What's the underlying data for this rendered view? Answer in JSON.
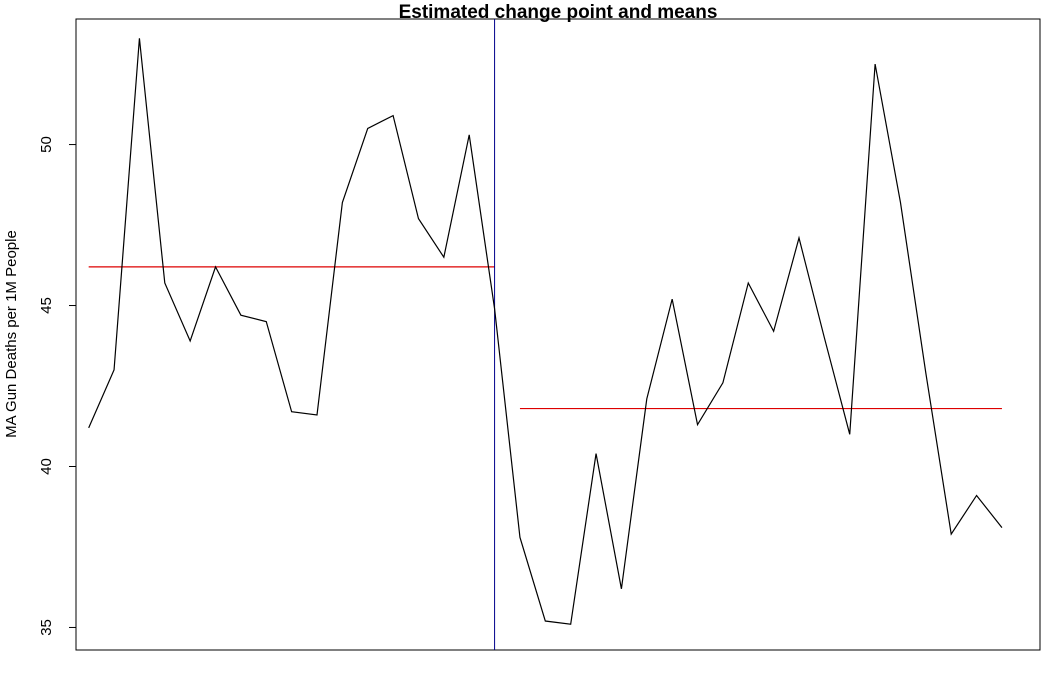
{
  "chart_data": {
    "type": "line",
    "title": "Estimated change point and means",
    "xlabel": "",
    "ylabel": "MA Gun Deaths per 1M People",
    "ylim": [
      34.3,
      53.9
    ],
    "yticks": [
      35,
      40,
      45,
      50
    ],
    "x_range": [
      -0.5,
      37.5
    ],
    "grid": false,
    "legend": "none",
    "series": [
      {
        "values": [
          41.2,
          43.0,
          53.3,
          45.7,
          43.9,
          46.2,
          44.7,
          44.5,
          41.7,
          41.6,
          48.2,
          50.5,
          50.9,
          47.7,
          46.5,
          50.3,
          44.9,
          37.8,
          35.2,
          35.1,
          40.4,
          36.2,
          42.1,
          45.2,
          41.3,
          42.6,
          45.7,
          44.2,
          47.1,
          44.0,
          41.0,
          52.5,
          48.2,
          42.9,
          37.9,
          39.1,
          38.1
        ]
      }
    ],
    "segment_means": [
      {
        "x_start": 0,
        "x_end": 16,
        "value": 46.2,
        "color": "#dd0000"
      },
      {
        "x_start": 17,
        "x_end": 36,
        "value": 41.8,
        "color": "#dd0000"
      }
    ],
    "change_point_x": 16,
    "colors": {
      "line": "#000000",
      "mean": "#dd0000",
      "change_point": "#00008b"
    }
  }
}
